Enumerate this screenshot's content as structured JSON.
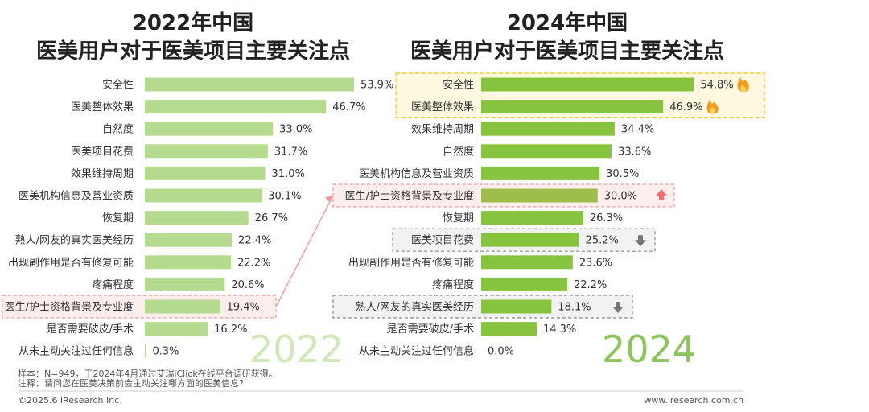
{
  "left_title_line1": "2022年中国",
  "left_title_line2": "医美用户对于医美项目主要关注点",
  "right_title_line1": "2024年中国",
  "right_title_line2": "医美用户对于医美项目主要关注点",
  "left_year_label": "2022",
  "right_year_label": "2024",
  "notes": {
    "sample": "样本：N=949，于2024年4月通过艾瑞iClick在线平台调研获得。",
    "remark": "注释：请问您在医美决策前会主动关注哪方面的医美信息?"
  },
  "footer": {
    "copyright": "©2025.6 iResearch Inc.",
    "website": "www.iresearch.com.cn"
  },
  "colors": {
    "left_bar": "#b5dc8e",
    "right_bar": "#86c43f",
    "highlight_bar": "#9ebd4a",
    "left_year_color": "#cfe8b5",
    "right_year_color": "#8cc65a",
    "pink": "#f39999",
    "yellow": "#f5c842",
    "gray": "#888888"
  },
  "chart_data": [
    {
      "type": "bar",
      "orientation": "horizontal",
      "title": "2022年中国医美用户对于医美项目主要关注点",
      "categories": [
        "安全性",
        "医美整体效果",
        "自然度",
        "医美项目花费",
        "效果维持周期",
        "医美机构信息及营业资质",
        "恢复期",
        "熟人/网友的真实医美经历",
        "出现副作用是否有修复可能",
        "疼痛程度",
        "医生/护士资格背景及专业度",
        "是否需要破皮/手术",
        "从未主动关注过任何信息"
      ],
      "values": [
        53.9,
        46.7,
        33.0,
        31.7,
        31.0,
        30.1,
        26.7,
        22.4,
        22.2,
        20.6,
        19.4,
        16.2,
        0.3
      ],
      "labels": [
        "53.9%",
        "46.7%",
        "33.0%",
        "31.7%",
        "31.0%",
        "30.1%",
        "26.7%",
        "22.4%",
        "22.2%",
        "20.6%",
        "19.4%",
        "16.2%",
        "0.3%"
      ],
      "highlight": [
        "医生/护士资格背景及专业度"
      ]
    },
    {
      "type": "bar",
      "orientation": "horizontal",
      "title": "2024年中国医美用户对于医美项目主要关注点",
      "categories": [
        "安全性",
        "医美整体效果",
        "效果维持周期",
        "自然度",
        "医美机构信息及营业资质",
        "医生/护士资格背景及专业度",
        "恢复期",
        "医美项目花费",
        "出现副作用是否有修复可能",
        "疼痛程度",
        "熟人/网友的真实医美经历",
        "是否需要破皮/手术",
        "从未主动关注过任何信息"
      ],
      "values": [
        54.8,
        46.9,
        34.4,
        33.6,
        30.5,
        30.0,
        26.3,
        25.2,
        23.6,
        22.2,
        18.1,
        14.3,
        0.0
      ],
      "labels": [
        "54.8%",
        "46.9%",
        "34.4%",
        "33.6%",
        "30.5%",
        "30.0%",
        "26.3%",
        "25.2%",
        "23.6%",
        "22.2%",
        "18.1%",
        "14.3%",
        "0.0%"
      ],
      "hot": [
        "安全性",
        "医美整体效果"
      ],
      "up": [
        "医生/护士资格背景及专业度"
      ],
      "down": [
        "医美项目花费",
        "熟人/网友的真实医美经历"
      ]
    }
  ]
}
